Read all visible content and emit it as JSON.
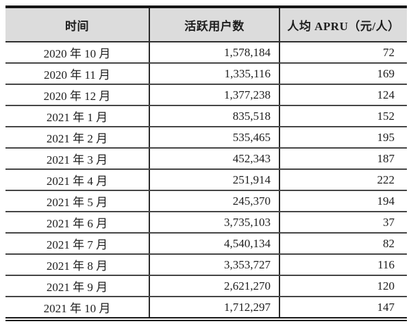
{
  "table": {
    "title": "monthly-active-users-and-arpu",
    "headers": {
      "time": "时间",
      "active_users": "活跃用户数",
      "arpu": "人均 APRU（元/人）"
    },
    "rows": [
      {
        "time": "2020 年 10 月",
        "active_users": "1,578,184",
        "arpu": "72"
      },
      {
        "time": "2020 年 11 月",
        "active_users": "1,335,116",
        "arpu": "169"
      },
      {
        "time": "2020 年 12 月",
        "active_users": "1,377,238",
        "arpu": "124"
      },
      {
        "time": "2021 年 1 月",
        "active_users": "835,518",
        "arpu": "152"
      },
      {
        "time": "2021 年 2 月",
        "active_users": "535,465",
        "arpu": "195"
      },
      {
        "time": "2021 年 3 月",
        "active_users": "452,343",
        "arpu": "187"
      },
      {
        "time": "2021 年 4 月",
        "active_users": "251,914",
        "arpu": "222"
      },
      {
        "time": "2021 年 5 月",
        "active_users": "245,370",
        "arpu": "194"
      },
      {
        "time": "2021 年 6 月",
        "active_users": "3,735,103",
        "arpu": "37"
      },
      {
        "time": "2021 年 7 月",
        "active_users": "4,540,134",
        "arpu": "82"
      },
      {
        "time": "2021 年 8 月",
        "active_users": "3,353,727",
        "arpu": "116"
      },
      {
        "time": "2021 年 9 月",
        "active_users": "2,621,270",
        "arpu": "120"
      },
      {
        "time": "2021 年 10 月",
        "active_users": "1,712,297",
        "arpu": "147"
      }
    ]
  },
  "colors": {
    "header_bg": "#dcdcdc",
    "border": "#2a2a2a",
    "row_divider": "#454545",
    "text": "#1d1d1d",
    "page_bg": "#ffffff"
  }
}
